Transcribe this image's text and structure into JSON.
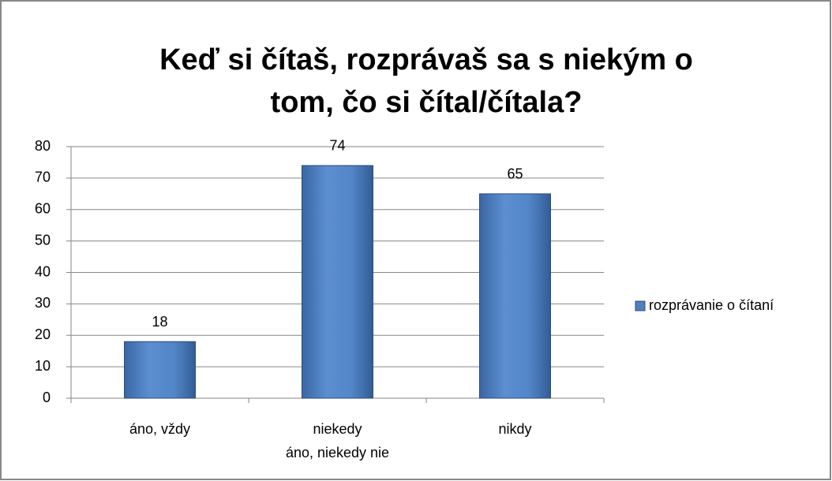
{
  "chart_data": {
    "type": "bar",
    "title": [
      "Keď si čítaš, rozprávaš sa s niekým o",
      "tom, čo si čítal/čítala?"
    ],
    "categories": [
      "áno, vždy",
      [
        "niekedy",
        "áno, niekedy nie"
      ],
      "nikdy"
    ],
    "series": [
      {
        "name": "rozprávanie o čítaní",
        "color": "#4f81bd",
        "values": [
          18,
          74,
          65
        ]
      }
    ],
    "ylim": [
      0,
      80
    ],
    "yticks": [
      0,
      10,
      20,
      30,
      40,
      50,
      60,
      70,
      80
    ],
    "grid": true,
    "legend": "right"
  }
}
